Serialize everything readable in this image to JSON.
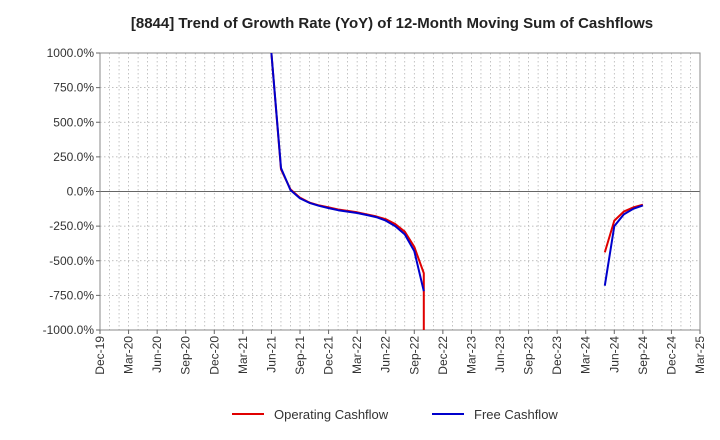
{
  "chart_data": {
    "type": "line",
    "title": "[8844]  Trend of Growth Rate (YoY) of 12-Month Moving Sum of Cashflows",
    "xlabel": "",
    "ylabel": "",
    "x_ticks": [
      "Dec-19",
      "Mar-20",
      "Jun-20",
      "Sep-20",
      "Dec-20",
      "Mar-21",
      "Jun-21",
      "Sep-21",
      "Dec-21",
      "Mar-22",
      "Jun-22",
      "Sep-22",
      "Dec-22",
      "Mar-23",
      "Jun-23",
      "Sep-23",
      "Dec-23",
      "Mar-24",
      "Jun-24",
      "Sep-24",
      "Dec-24",
      "Mar-25"
    ],
    "y_ticks": [
      "1000.0%",
      "750.0%",
      "500.0%",
      "250.0%",
      "0.0%",
      "-250.0%",
      "-500.0%",
      "-750.0%",
      "-1000.0%"
    ],
    "ylim": [
      -1000,
      1000
    ],
    "grid": true,
    "legend_position": "bottom",
    "series": [
      {
        "name": "Operating Cashflow",
        "color": "#e00000",
        "points": [
          [
            "Jun-21",
            1000
          ],
          [
            "Jul-21",
            160
          ],
          [
            "Aug-21",
            15
          ],
          [
            "Sep-21",
            -45
          ],
          [
            "Oct-21",
            -80
          ],
          [
            "Nov-21",
            -100
          ],
          [
            "Dec-21",
            -115
          ],
          [
            "Jan-22",
            -130
          ],
          [
            "Feb-22",
            -140
          ],
          [
            "Mar-22",
            -150
          ],
          [
            "Apr-22",
            -165
          ],
          [
            "May-22",
            -180
          ],
          [
            "Jun-22",
            -200
          ],
          [
            "Jul-22",
            -235
          ],
          [
            "Aug-22",
            -290
          ],
          [
            "Sep-22",
            -400
          ],
          [
            "Oct-22",
            -590
          ],
          [
            "Oct-22",
            -1000
          ],
          null,
          [
            "May-24",
            -440
          ],
          [
            "Jun-24",
            -210
          ],
          [
            "Jul-24",
            -145
          ],
          [
            "Aug-24",
            -115
          ],
          [
            "Sep-24",
            -95
          ]
        ]
      },
      {
        "name": "Free Cashflow",
        "color": "#0000cc",
        "points": [
          [
            "Jun-21",
            1000
          ],
          [
            "Jul-21",
            170
          ],
          [
            "Aug-21",
            10
          ],
          [
            "Sep-21",
            -50
          ],
          [
            "Oct-21",
            -82
          ],
          [
            "Nov-21",
            -103
          ],
          [
            "Dec-21",
            -120
          ],
          [
            "Jan-22",
            -135
          ],
          [
            "Feb-22",
            -145
          ],
          [
            "Mar-22",
            -155
          ],
          [
            "Apr-22",
            -170
          ],
          [
            "May-22",
            -185
          ],
          [
            "Jun-22",
            -210
          ],
          [
            "Jul-22",
            -250
          ],
          [
            "Aug-22",
            -310
          ],
          [
            "Sep-22",
            -430
          ],
          [
            "Oct-22",
            -720
          ],
          null,
          [
            "May-24",
            -680
          ],
          [
            "Jun-24",
            -250
          ],
          [
            "Jul-24",
            -165
          ],
          [
            "Aug-24",
            -125
          ],
          [
            "Sep-24",
            -100
          ]
        ]
      }
    ]
  }
}
